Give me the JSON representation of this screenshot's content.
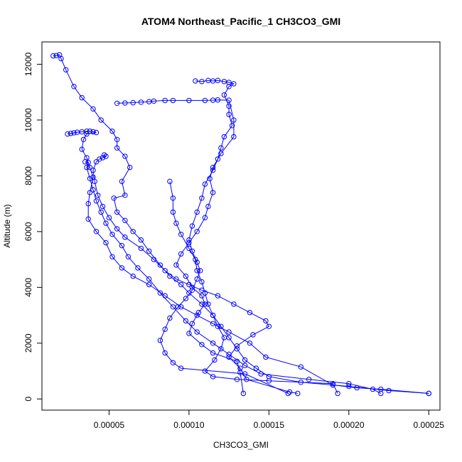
{
  "chart_data": {
    "type": "scatter",
    "title": "ATOM4 Northeast_Pacific_1 CH3CO3_GMI",
    "xlabel": "CH3CO3_GMI",
    "ylabel": "Altitude (m)",
    "xlim": [
      8e-06,
      0.000257
    ],
    "ylim": [
      -400,
      12800
    ],
    "xticks": [
      5e-05,
      0.0001,
      0.00015,
      0.0002,
      0.00025
    ],
    "xtick_labels": [
      "0.00005",
      "0.00010",
      "0.00015",
      "0.00020",
      "0.00025"
    ],
    "yticks": [
      0,
      2000,
      4000,
      6000,
      8000,
      10000,
      12000
    ],
    "ytick_labels": [
      "0",
      "2000",
      "4000",
      "6000",
      "8000",
      "10000",
      "12000"
    ],
    "color": "#0000ff",
    "marker": "open-circle",
    "connected": true,
    "series": [
      {
        "points": [
          [
            1.5e-05,
            12300
          ],
          [
            1.7e-05,
            12310
          ],
          [
            1.9e-05,
            12340
          ],
          [
            2e-05,
            12200
          ],
          [
            2.3e-05,
            11800
          ],
          [
            2.8e-05,
            11200
          ],
          [
            3.3e-05,
            10800
          ],
          [
            4e-05,
            10400
          ],
          [
            4.5e-05,
            10000
          ],
          [
            5.2e-05,
            9600
          ],
          [
            5.5e-05,
            9300
          ],
          [
            5.5e-05,
            9000
          ],
          [
            6e-05,
            8700
          ],
          [
            6.3e-05,
            8300
          ],
          [
            5.8e-05,
            7800
          ],
          [
            6e-05,
            7300
          ],
          [
            5.3e-05,
            7200
          ],
          [
            5.5e-05,
            6700
          ],
          [
            6e-05,
            6400
          ],
          [
            6.5e-05,
            6000
          ],
          [
            7e-05,
            5700
          ],
          [
            7.5e-05,
            5300
          ],
          [
            8.2e-05,
            4800
          ],
          [
            8.8e-05,
            4400
          ],
          [
            9.5e-05,
            4100
          ],
          [
            0.0001,
            3800
          ],
          [
            0.000108,
            3400
          ],
          [
            0.000115,
            3000
          ],
          [
            0.00012,
            2600
          ],
          [
            0.000125,
            2200
          ],
          [
            0.00013,
            1800
          ],
          [
            0.000135,
            1400
          ],
          [
            0.000142,
            1100
          ],
          [
            0.00015,
            800
          ],
          [
            0.00017,
            600
          ],
          [
            0.0002,
            450
          ],
          [
            0.000225,
            300
          ],
          [
            0.00025,
            200
          ]
        ]
      },
      {
        "points": [
          [
            2.4e-05,
            9500
          ],
          [
            2.6e-05,
            9520
          ],
          [
            2.8e-05,
            9540
          ],
          [
            3e-05,
            9560
          ],
          [
            3.3e-05,
            9580
          ],
          [
            3.6e-05,
            9600
          ],
          [
            3.8e-05,
            9600
          ],
          [
            4e-05,
            9580
          ],
          [
            4.2e-05,
            9550
          ],
          [
            3.6e-05,
            9500
          ],
          [
            3.4e-05,
            9300
          ],
          [
            3.3e-05,
            8950
          ],
          [
            3.6e-05,
            8650
          ],
          [
            3.8e-05,
            8300
          ],
          [
            4e-05,
            7950
          ],
          [
            3.8e-05,
            7400
          ],
          [
            3.7e-05,
            7000
          ],
          [
            3.7e-05,
            6450
          ],
          [
            4.2e-05,
            6000
          ],
          [
            4.8e-05,
            5600
          ],
          [
            5.2e-05,
            5100
          ],
          [
            5.8e-05,
            4700
          ],
          [
            6.5e-05,
            4400
          ],
          [
            7.5e-05,
            4100
          ],
          [
            8.5e-05,
            3700
          ],
          [
            9.5e-05,
            3300
          ],
          [
            0.000105,
            3000
          ],
          [
            0.000115,
            2700
          ],
          [
            0.000125,
            2400
          ],
          [
            0.000138,
            2000
          ],
          [
            0.000148,
            1500
          ],
          [
            0.00017,
            1150
          ],
          [
            0.00019,
            500
          ],
          [
            0.000205,
            400
          ],
          [
            0.00022,
            350
          ],
          [
            0.00025,
            200
          ]
        ]
      },
      {
        "points": [
          [
            5.5e-05,
            10600
          ],
          [
            6e-05,
            10610
          ],
          [
            6.5e-05,
            10620
          ],
          [
            7e-05,
            10640
          ],
          [
            7.5e-05,
            10660
          ],
          [
            7.8e-05,
            10680
          ],
          [
            8.5e-05,
            10700
          ],
          [
            9e-05,
            10700
          ],
          [
            0.0001,
            10700
          ],
          [
            0.00011,
            10700
          ],
          [
            0.000115,
            10710
          ],
          [
            0.000118,
            10720
          ],
          [
            0.000125,
            10710
          ],
          [
            0.000128,
            10000
          ],
          [
            0.000128,
            9400
          ],
          [
            0.00012,
            8800
          ],
          [
            0.000115,
            8300
          ],
          [
            0.000113,
            7900
          ],
          [
            0.000115,
            7400
          ],
          [
            0.000112,
            6900
          ],
          [
            0.00011,
            6500
          ],
          [
            0.000105,
            6000
          ],
          [
            0.0001,
            5600
          ],
          [
            9.5e-05,
            5200
          ],
          [
            9.2e-05,
            4800
          ],
          [
            9.8e-05,
            4400
          ],
          [
            0.000102,
            4000
          ],
          [
            0.000108,
            3700
          ],
          [
            0.00011,
            3400
          ],
          [
            0.000106,
            3100
          ],
          [
            0.000102,
            2700
          ],
          [
            0.0001,
            2350
          ],
          [
            0.000108,
            1950
          ],
          [
            0.000115,
            1650
          ],
          [
            0.00013,
            1350
          ],
          [
            0.000132,
            950
          ],
          [
            0.000134,
            200
          ]
        ]
      },
      {
        "points": [
          [
            0.000104,
            11400
          ],
          [
            0.000108,
            11380
          ],
          [
            0.000112,
            11420
          ],
          [
            0.000115,
            11400
          ],
          [
            0.000118,
            11420
          ],
          [
            0.000122,
            11380
          ],
          [
            0.000125,
            11350
          ],
          [
            0.000128,
            11300
          ],
          [
            0.000125,
            11200
          ],
          [
            0.000122,
            10900
          ],
          [
            0.000125,
            10500
          ],
          [
            0.000125,
            10200
          ],
          [
            0.000127,
            9800
          ],
          [
            0.000122,
            9400
          ],
          [
            0.00012,
            9000
          ],
          [
            0.000118,
            8600
          ],
          [
            0.000115,
            8200
          ],
          [
            0.00011,
            7700
          ],
          [
            0.000108,
            7200
          ],
          [
            0.000105,
            6700
          ],
          [
            0.000102,
            6200
          ],
          [
            0.0001,
            5700
          ],
          [
            0.000102,
            5300
          ],
          [
            0.000105,
            4900
          ],
          [
            0.000107,
            4600
          ],
          [
            0.000105,
            4300
          ],
          [
            0.000102,
            3900
          ],
          [
            9.8e-05,
            3600
          ],
          [
            9.3e-05,
            3300
          ],
          [
            8.8e-05,
            2900
          ],
          [
            8.5e-05,
            2500
          ],
          [
            8.2e-05,
            2100
          ],
          [
            8.5e-05,
            1650
          ],
          [
            9e-05,
            1300
          ],
          [
            9.5e-05,
            1100
          ],
          [
            0.000135,
            900
          ],
          [
            0.000162,
            200
          ]
        ]
      },
      {
        "points": [
          [
            4.7e-05,
            8750
          ],
          [
            4.8e-05,
            8700
          ],
          [
            4.6e-05,
            8650
          ],
          [
            4.4e-05,
            8600
          ],
          [
            4.2e-05,
            8500
          ],
          [
            4e-05,
            8200
          ],
          [
            4.1e-05,
            7800
          ],
          [
            4.3e-05,
            7300
          ],
          [
            4.6e-05,
            6900
          ],
          [
            5e-05,
            6500
          ],
          [
            5.5e-05,
            6100
          ],
          [
            6e-05,
            5800
          ],
          [
            7e-05,
            5400
          ],
          [
            7.8e-05,
            5000
          ],
          [
            8.5e-05,
            4600
          ],
          [
            9.2e-05,
            4300
          ],
          [
            0.0001,
            4100
          ],
          [
            0.000108,
            3900
          ],
          [
            0.000118,
            3700
          ],
          [
            0.000128,
            3400
          ],
          [
            0.000138,
            3100
          ],
          [
            0.000148,
            2800
          ],
          [
            0.00015,
            2600
          ],
          [
            0.00014,
            2300
          ],
          [
            0.00013,
            1900
          ],
          [
            0.000125,
            1500
          ],
          [
            0.000132,
            1100
          ],
          [
            0.000136,
            700
          ],
          [
            0.000163,
            250
          ],
          [
            0.000168,
            200
          ]
        ]
      },
      {
        "points": [
          [
            3.5e-05,
            8500
          ],
          [
            3.7e-05,
            8480
          ],
          [
            3.6e-05,
            8300
          ],
          [
            3.8e-05,
            7900
          ],
          [
            4e-05,
            7500
          ],
          [
            4.2e-05,
            7100
          ],
          [
            4.5e-05,
            6700
          ],
          [
            4.8e-05,
            6300
          ],
          [
            5.2e-05,
            5900
          ],
          [
            5.8e-05,
            5500
          ],
          [
            6.2e-05,
            5100
          ],
          [
            6.8e-05,
            4700
          ],
          [
            7.5e-05,
            4300
          ],
          [
            8.2e-05,
            3800
          ],
          [
            9e-05,
            3300
          ],
          [
            9.8e-05,
            2800
          ],
          [
            0.000105,
            2400
          ],
          [
            0.000115,
            2000
          ],
          [
            0.000125,
            1600
          ],
          [
            0.000135,
            1200
          ],
          [
            0.000145,
            900
          ],
          [
            0.000175,
            700
          ],
          [
            0.0002,
            550
          ],
          [
            0.000215,
            350
          ],
          [
            0.00022,
            200
          ]
        ]
      },
      {
        "points": [
          [
            8.8e-05,
            7800
          ],
          [
            9e-05,
            7200
          ],
          [
            9e-05,
            6700
          ],
          [
            9.2e-05,
            6300
          ],
          [
            9.5e-05,
            5900
          ],
          [
            0.0001,
            5400
          ],
          [
            0.000104,
            5000
          ],
          [
            0.000105,
            4600
          ],
          [
            0.000108,
            4200
          ],
          [
            0.00011,
            3800
          ],
          [
            0.000112,
            3400
          ],
          [
            0.000115,
            3000
          ],
          [
            0.000118,
            2600
          ],
          [
            0.000122,
            2200
          ],
          [
            0.00012,
            1800
          ],
          [
            0.000116,
            1400
          ],
          [
            0.00011,
            1000
          ],
          [
            0.000115,
            800
          ],
          [
            0.00013,
            700
          ],
          [
            0.00015,
            650
          ],
          [
            0.00019,
            550
          ],
          [
            0.000193,
            200
          ]
        ]
      }
    ]
  }
}
